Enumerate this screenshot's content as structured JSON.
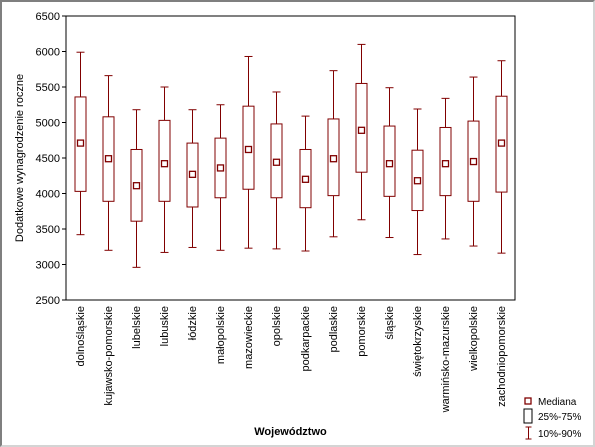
{
  "chart_data": {
    "type": "boxplot",
    "title": "",
    "xlabel": "Województwo",
    "ylabel": "Dodatkowe wynagrodzenie roczne",
    "ylim": [
      2500,
      6500
    ],
    "yticks": [
      2500,
      3000,
      3500,
      4000,
      4500,
      5000,
      5500,
      6000,
      6500
    ],
    "grid": false,
    "legend_position": "bottom-right",
    "colors": {
      "box": "#800000",
      "plot_border": "#000000"
    },
    "categories": [
      "dolnośląskie",
      "kujawsko-pomorskie",
      "lubelskie",
      "lubuskie",
      "łódzkie",
      "małopolskie",
      "mazowieckie",
      "opolskie",
      "podkarpackie",
      "podlaskie",
      "pomorskie",
      "śląskie",
      "świętokrzyskie",
      "warmińsko-mazurskie",
      "wielkopolskie",
      "zachodniopomorskie"
    ],
    "boxes": [
      {
        "p10": 3420,
        "q1": 4030,
        "median": 4710,
        "q3": 5360,
        "p90": 5990
      },
      {
        "p10": 3200,
        "q1": 3890,
        "median": 4490,
        "q3": 5080,
        "p90": 5660
      },
      {
        "p10": 2960,
        "q1": 3610,
        "median": 4110,
        "q3": 4620,
        "p90": 5180
      },
      {
        "p10": 3170,
        "q1": 3890,
        "median": 4420,
        "q3": 5030,
        "p90": 5500
      },
      {
        "p10": 3240,
        "q1": 3810,
        "median": 4270,
        "q3": 4710,
        "p90": 5180
      },
      {
        "p10": 3200,
        "q1": 3940,
        "median": 4360,
        "q3": 4780,
        "p90": 5250
      },
      {
        "p10": 3230,
        "q1": 4060,
        "median": 4620,
        "q3": 5230,
        "p90": 5930
      },
      {
        "p10": 3220,
        "q1": 3940,
        "median": 4440,
        "q3": 4980,
        "p90": 5430
      },
      {
        "p10": 3190,
        "q1": 3800,
        "median": 4200,
        "q3": 4620,
        "p90": 5090
      },
      {
        "p10": 3390,
        "q1": 3970,
        "median": 4490,
        "q3": 5050,
        "p90": 5730
      },
      {
        "p10": 3630,
        "q1": 4300,
        "median": 4890,
        "q3": 5550,
        "p90": 6100
      },
      {
        "p10": 3380,
        "q1": 3960,
        "median": 4420,
        "q3": 4950,
        "p90": 5490
      },
      {
        "p10": 3140,
        "q1": 3760,
        "median": 4180,
        "q3": 4610,
        "p90": 5190
      },
      {
        "p10": 3360,
        "q1": 3970,
        "median": 4420,
        "q3": 4930,
        "p90": 5340
      },
      {
        "p10": 3260,
        "q1": 3890,
        "median": 4450,
        "q3": 5020,
        "p90": 5640
      },
      {
        "p10": 3160,
        "q1": 4020,
        "median": 4710,
        "q3": 5370,
        "p90": 5870
      }
    ],
    "legend": {
      "median": "Mediana",
      "box": "25%-75%",
      "whisker": "10%-90%"
    }
  }
}
